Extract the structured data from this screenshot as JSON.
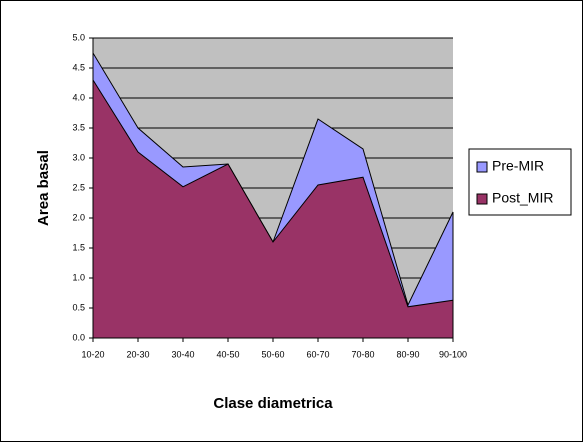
{
  "chart_data": {
    "type": "area",
    "x_label": "Clase diametrica",
    "y_label": "Area basal",
    "categories": [
      "10-20",
      "20-30",
      "30-40",
      "40-50",
      "50-60",
      "60-70",
      "70-80",
      "80-90",
      "90-100"
    ],
    "series": [
      {
        "name": "Pre-MIR",
        "color": "#9999ff",
        "values": [
          4.75,
          3.5,
          2.85,
          2.9,
          1.6,
          3.65,
          3.15,
          0.55,
          2.1
        ]
      },
      {
        "name": "Post_MIR",
        "color": "#993366",
        "values": [
          4.3,
          3.1,
          2.52,
          2.9,
          1.6,
          2.55,
          2.68,
          0.52,
          0.63
        ]
      }
    ],
    "ylim": [
      0,
      5
    ],
    "yticks": [
      {
        "value": 0,
        "label": "0.0"
      },
      {
        "value": 0.5,
        "label": "0.5"
      },
      {
        "value": 1,
        "label": "1.0"
      },
      {
        "value": 1.5,
        "label": "1.5"
      },
      {
        "value": 2,
        "label": "2.0"
      },
      {
        "value": 2.5,
        "label": "2.5"
      },
      {
        "value": 3,
        "label": "3.0"
      },
      {
        "value": 3.5,
        "label": "3.5"
      },
      {
        "value": 4,
        "label": "4.0"
      },
      {
        "value": 4.5,
        "label": "4.5"
      },
      {
        "value": 5,
        "label": "5.0"
      }
    ],
    "grid": true,
    "plot_background": "#c0c0c0",
    "legend": "right"
  }
}
